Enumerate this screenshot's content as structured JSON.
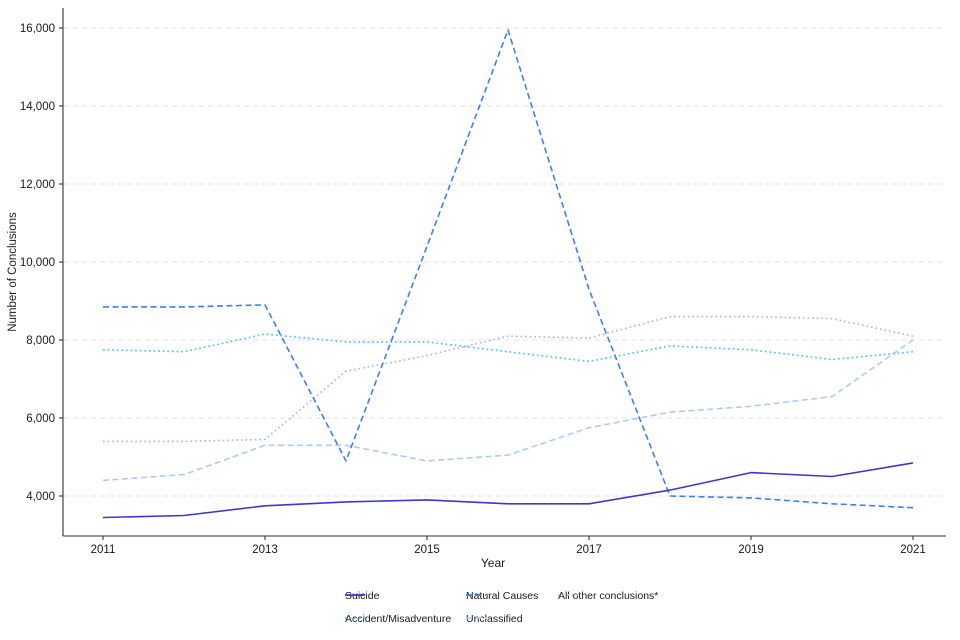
{
  "chart_data": {
    "type": "line",
    "title": "",
    "xlabel": "Year",
    "ylabel": "Number of Conclusions",
    "x": [
      2011,
      2012,
      2013,
      2014,
      2015,
      2016,
      2017,
      2018,
      2019,
      2020,
      2021
    ],
    "x_axis": {
      "ticks": [
        2011,
        2013,
        2015,
        2017,
        2019,
        2021
      ]
    },
    "y_axis": {
      "ticks": [
        4000,
        6000,
        8000,
        10000,
        12000,
        14000,
        16000
      ],
      "tick_labels": [
        "4,000",
        "6,000",
        "8,000",
        "10,000",
        "12,000",
        "14,000",
        "16,000"
      ],
      "range_approx": [
        2950,
        16460
      ],
      "grid": "horizontal-dashed"
    },
    "legend_position": "bottom",
    "series": [
      {
        "name": "Suicide",
        "line_style": "solid",
        "color": "#3a3ac8",
        "values": [
          3450,
          3500,
          3750,
          3850,
          3900,
          3800,
          3800,
          4150,
          4600,
          4500,
          4850
        ]
      },
      {
        "name": "Accident/Misadventure",
        "line_style": "dotted",
        "color": "#3cc5f0",
        "values": [
          7750,
          7700,
          8150,
          7950,
          7950,
          7700,
          7450,
          7850,
          7750,
          7500,
          7700
        ]
      },
      {
        "name": "Natural Causes",
        "line_style": "dashed",
        "color": "#3d7ef5",
        "values": [
          8850,
          8850,
          8900,
          4900,
          10400,
          15950,
          9300,
          4000,
          3950,
          3800,
          3700
        ]
      },
      {
        "name": "Unclassified",
        "line_style": "dashed",
        "color": "#a9cdf6",
        "values": [
          4400,
          4550,
          5300,
          5300,
          4900,
          5050,
          5750,
          6150,
          6300,
          6550,
          8000
        ]
      },
      {
        "name": "All other conclusions*",
        "line_style": "dotted",
        "color": "#aeb2ea",
        "values": [
          5400,
          5400,
          5450,
          7200,
          7600,
          8100,
          8050,
          8600,
          8600,
          8550,
          8100
        ]
      }
    ],
    "z_order": [
      "Unclassified",
      "All other conclusions*",
      "Accident/Misadventure",
      "Natural Causes",
      "Suicide"
    ]
  },
  "legend": {
    "rows": [
      [
        "Suicide",
        "Natural Causes",
        "All other conclusions*"
      ],
      [
        "Accident/Misadventure",
        "Unclassified"
      ]
    ]
  },
  "colors": {
    "grid": "#e0e0e0",
    "axis": "#333333",
    "text": "#1a1a1a",
    "background": "#ffffff"
  }
}
